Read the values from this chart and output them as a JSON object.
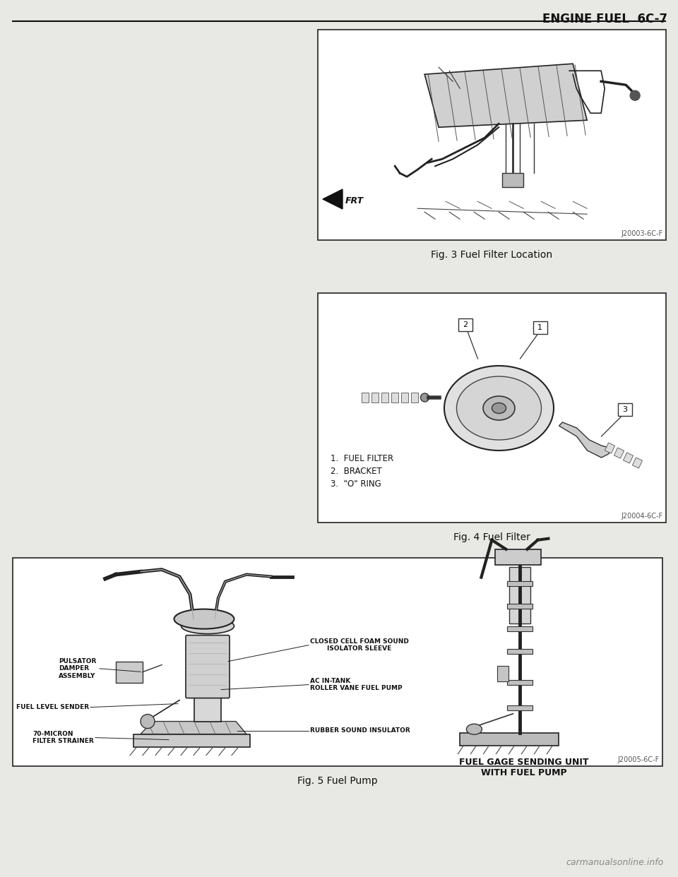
{
  "page_title": "ENGINE FUEL  6C-7",
  "header_line_color": "#111111",
  "bg_color": "#e8e8e4",
  "box_bg": "#ffffff",
  "box_edge": "#222222",
  "watermark": "carmanualsonline.info",
  "fig3_caption": "Fig. 3 Fuel Filter Location",
  "fig3_code": "J20003-6C-F",
  "fig3_frt_label": "FRT",
  "fig4_caption": "Fig. 4 Fuel Filter",
  "fig4_code": "J20004-6C-F",
  "fig4_items": [
    "1.  FUEL FILTER",
    "2.  BRACKET",
    "3.  \"O\" RING"
  ],
  "fig5_caption": "Fig. 5 Fuel Pump",
  "fig5_code": "J20005-6C-F",
  "fig5_left_labels": [
    [
      "PULSATOR\nDAMPER\nASSEMBLY",
      "left"
    ],
    [
      "FUEL LEVEL SENDER",
      "left"
    ],
    [
      "70-MICRON\nFILTER STRAINER",
      "left"
    ]
  ],
  "fig5_right_labels": [
    [
      "CLOSED CELL FOAM SOUND\nISOLATOR SLEEVE",
      "right"
    ],
    [
      "AC IN-TANK\nROLLER VANE FUEL PUMP",
      "right"
    ],
    [
      "RUBBER SOUND INSULATOR",
      "right"
    ]
  ],
  "fig5_right_caption": "FUEL GAGE SENDING UNIT\nWITH FUEL PUMP"
}
